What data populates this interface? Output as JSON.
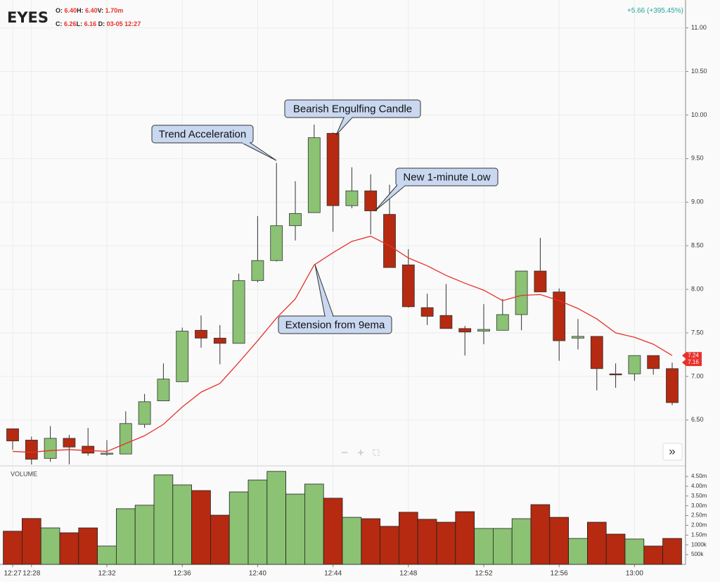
{
  "header": {
    "symbol": "EYES",
    "row1": [
      {
        "label": "O:",
        "value": "6.40"
      },
      {
        "label": "H:",
        "value": "6.40"
      },
      {
        "label": "V:",
        "value": "1.70m"
      }
    ],
    "row2": [
      {
        "label": "C:",
        "value": "6.26"
      },
      {
        "label": "L:",
        "value": "6.16"
      },
      {
        "label": "D:",
        "value": "03-05 12:27"
      }
    ],
    "change": "+5.66 (+395.45%)"
  },
  "ui": {
    "more": "»"
  },
  "chart_data": [
    {
      "type": "candlestick",
      "categories": [
        "12:27",
        "12:28",
        null,
        null,
        null,
        "12:32",
        null,
        null,
        null,
        "12:36",
        null,
        null,
        null,
        "12:40",
        null,
        null,
        null,
        "12:44",
        null,
        null,
        null,
        "12:48",
        null,
        null,
        null,
        "12:52",
        null,
        null,
        null,
        "12:56",
        null,
        null,
        null,
        "13:00",
        null,
        null
      ],
      "open": [
        6.4,
        6.27,
        6.06,
        6.29,
        6.2,
        6.11,
        6.11,
        6.45,
        6.72,
        6.94,
        7.53,
        7.44,
        7.38,
        8.1,
        8.33,
        8.73,
        8.88,
        9.79,
        8.96,
        9.13,
        8.86,
        8.28,
        7.79,
        7.7,
        7.55,
        7.52,
        7.53,
        7.71,
        8.21,
        7.97,
        7.44,
        7.46,
        7.03,
        7.03,
        7.24,
        7.09
      ],
      "high": [
        6.4,
        6.31,
        6.43,
        6.33,
        6.41,
        6.27,
        6.6,
        6.8,
        7.15,
        7.56,
        7.7,
        7.59,
        8.18,
        8.84,
        9.45,
        9.24,
        9.89,
        9.8,
        9.4,
        9.32,
        9.2,
        8.46,
        7.95,
        8.06,
        7.58,
        7.83,
        7.89,
        8.21,
        8.59,
        8.01,
        7.66,
        7.46,
        7.15,
        7.24,
        7.24,
        7.16
      ],
      "low": [
        6.16,
        5.99,
        6.02,
        5.99,
        6.09,
        6.09,
        6.11,
        6.41,
        6.72,
        6.94,
        7.33,
        7.14,
        7.38,
        8.08,
        8.32,
        8.56,
        8.88,
        8.66,
        8.93,
        8.63,
        8.25,
        7.79,
        7.59,
        7.55,
        7.24,
        7.37,
        7.53,
        7.53,
        7.97,
        7.18,
        7.31,
        6.84,
        6.87,
        6.95,
        7.02,
        6.67
      ],
      "close": [
        6.26,
        6.05,
        6.29,
        6.19,
        6.12,
        6.12,
        6.46,
        6.71,
        6.97,
        7.52,
        7.44,
        7.38,
        8.1,
        8.33,
        8.73,
        8.87,
        9.74,
        8.96,
        9.13,
        8.9,
        8.25,
        7.8,
        7.69,
        7.55,
        7.51,
        7.54,
        7.71,
        8.21,
        7.97,
        7.41,
        7.46,
        7.09,
        7.02,
        7.24,
        7.09,
        6.7
      ],
      "up_color": "#8bc273",
      "down_color": "#b52a10",
      "ylim": [
        5.99,
        11.32
      ],
      "yticks": [
        {
          "value": 11,
          "label": "11.00"
        },
        {
          "value": 10.5,
          "label": "10.50"
        },
        {
          "value": 10,
          "label": "10.00"
        },
        {
          "value": 9.5,
          "label": "9.50"
        },
        {
          "value": 9,
          "label": "9.00"
        },
        {
          "value": 8.5,
          "label": "8.50"
        },
        {
          "value": 8,
          "label": "8.00"
        },
        {
          "value": 7.5,
          "label": "7.50"
        },
        {
          "value": 7,
          "label": "7.00"
        },
        {
          "value": 6.5,
          "label": "6.50"
        }
      ],
      "grid": true,
      "ema": {
        "color": "#e8302a",
        "values": [
          6.14,
          6.13,
          6.15,
          6.16,
          6.15,
          6.14,
          6.23,
          6.32,
          6.45,
          6.65,
          6.82,
          6.92,
          7.16,
          7.41,
          7.67,
          7.89,
          8.28,
          8.42,
          8.55,
          8.61,
          8.5,
          8.36,
          8.27,
          8.16,
          8.07,
          7.99,
          7.87,
          7.93,
          7.94,
          7.87,
          7.78,
          7.66,
          7.5,
          7.45,
          7.37,
          7.24
        ]
      },
      "price_markers": [
        {
          "value": 7.24,
          "color": "#e8302a"
        },
        {
          "value": 7.16,
          "color": "#e8302a"
        }
      ],
      "annotations": [
        "Trend Acceleration",
        "Bearish Engulfing Candle",
        "New 1-minute Low",
        "Extension from 9ema"
      ]
    },
    {
      "type": "bar",
      "title": "VOLUME",
      "values": [
        1.7,
        2.35,
        1.87,
        1.62,
        1.87,
        0.94,
        2.85,
        3.03,
        4.58,
        4.07,
        3.78,
        2.52,
        3.71,
        4.32,
        4.76,
        3.6,
        4.11,
        3.39,
        2.41,
        2.34,
        1.95,
        2.67,
        2.31,
        2.16,
        2.7,
        1.84,
        1.84,
        2.34,
        3.06,
        2.41,
        1.33,
        2.16,
        1.55,
        1.3,
        0.94,
        1.33
      ],
      "ylim": [
        0,
        4.97
      ],
      "yticks": [
        {
          "value": 4.5,
          "label": "4.50m"
        },
        {
          "value": 4,
          "label": "4.00m"
        },
        {
          "value": 3.5,
          "label": "3.50m"
        },
        {
          "value": 3,
          "label": "3.00m"
        },
        {
          "value": 2.5,
          "label": "2.50m"
        },
        {
          "value": 2,
          "label": "2.00m"
        },
        {
          "value": 1.5,
          "label": "1.50m"
        },
        {
          "value": 1,
          "label": "1000k"
        },
        {
          "value": 0.5,
          "label": "500k"
        }
      ]
    }
  ]
}
